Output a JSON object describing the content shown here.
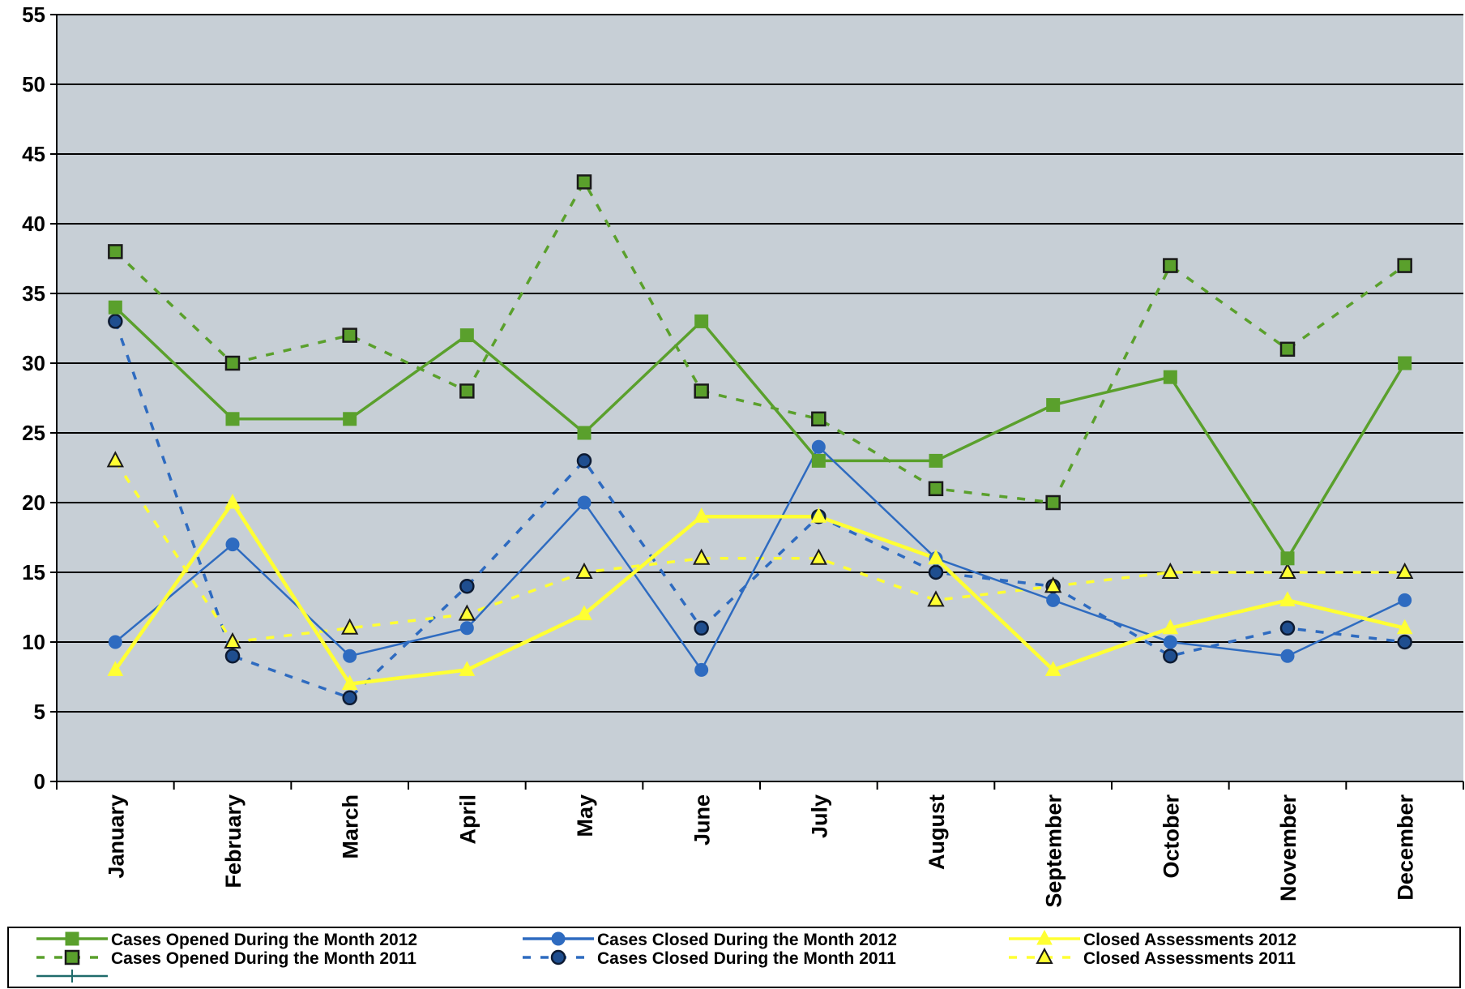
{
  "chart_data": {
    "type": "line",
    "title": "",
    "xlabel": "",
    "ylabel": "",
    "ylim": [
      0,
      55
    ],
    "yticks": [
      0,
      5,
      10,
      15,
      20,
      25,
      30,
      35,
      40,
      45,
      50,
      55
    ],
    "grid": true,
    "legend_position": "bottom",
    "categories": [
      "January",
      "February",
      "March",
      "April",
      "May",
      "June",
      "July",
      "August",
      "September",
      "October",
      "November",
      "December"
    ],
    "series": [
      {
        "name": "Cases Opened During the Month 2012",
        "values": [
          34,
          26,
          26,
          32,
          25,
          33,
          23,
          23,
          27,
          29,
          16,
          30
        ],
        "color": "#5aa02c",
        "dashed": false,
        "marker": "square"
      },
      {
        "name": "Cases Closed During the Month 2012",
        "values": [
          10,
          17,
          9,
          11,
          20,
          8,
          24,
          16,
          13,
          10,
          9,
          13
        ],
        "color": "#2e6bc0",
        "dashed": false,
        "marker": "circle"
      },
      {
        "name": "Closed Assessments 2012",
        "values": [
          8,
          20,
          7,
          8,
          12,
          19,
          19,
          16,
          8,
          11,
          13,
          11
        ],
        "color": "#ffff33",
        "dashed": false,
        "marker": "triangle"
      },
      {
        "name": "Cases Opened During the Month 2011",
        "values": [
          38,
          30,
          32,
          28,
          43,
          28,
          26,
          21,
          20,
          37,
          31,
          37
        ],
        "color": "#5aa02c",
        "dashed": true,
        "marker": "square"
      },
      {
        "name": "Cases Closed During the Month 2011",
        "values": [
          33,
          9,
          6,
          14,
          23,
          11,
          19,
          15,
          14,
          9,
          11,
          10
        ],
        "color": "#2e6bc0",
        "dashed": true,
        "marker": "circle"
      },
      {
        "name": "Closed Assessments 2011",
        "values": [
          23,
          10,
          11,
          12,
          15,
          16,
          16,
          13,
          14,
          15,
          15,
          15
        ],
        "color": "#ffff33",
        "dashed": true,
        "marker": "triangle"
      }
    ],
    "extra_legend_entry": {
      "name": "",
      "color": "#1f6b6b",
      "marker": "plus"
    }
  },
  "colors": {
    "plot_background": "#c7cfd6",
    "gridline": "#000000"
  }
}
